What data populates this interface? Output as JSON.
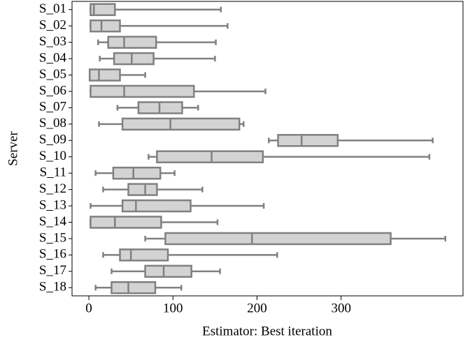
{
  "chart_data": {
    "type": "box",
    "xlabel": "Estimator: Best iteration",
    "ylabel": "Server",
    "categories": [
      "S_01",
      "S_02",
      "S_03",
      "S_04",
      "S_05",
      "S_06",
      "S_07",
      "S_08",
      "S_09",
      "S_10",
      "S_11",
      "S_12",
      "S_13",
      "S_14",
      "S_15",
      "S_16",
      "S_17",
      "S_18"
    ],
    "boxes": [
      {
        "whislo": 2,
        "q1": 2,
        "med": 6,
        "q3": 31,
        "whishi": 157
      },
      {
        "whislo": 2,
        "q1": 2,
        "med": 15,
        "q3": 37,
        "whishi": 165
      },
      {
        "whislo": 11,
        "q1": 23,
        "med": 42,
        "q3": 80,
        "whishi": 151
      },
      {
        "whislo": 13,
        "q1": 30,
        "med": 51,
        "q3": 77,
        "whishi": 150
      },
      {
        "whislo": 1,
        "q1": 1,
        "med": 12,
        "q3": 37,
        "whishi": 67
      },
      {
        "whislo": 2,
        "q1": 2,
        "med": 42,
        "q3": 125,
        "whishi": 210
      },
      {
        "whislo": 34,
        "q1": 59,
        "med": 84,
        "q3": 111,
        "whishi": 130
      },
      {
        "whislo": 12,
        "q1": 40,
        "med": 97,
        "q3": 179,
        "whishi": 184
      },
      {
        "whislo": 214,
        "q1": 225,
        "med": 253,
        "q3": 296,
        "whishi": 409
      },
      {
        "whislo": 71,
        "q1": 81,
        "med": 146,
        "q3": 207,
        "whishi": 405
      },
      {
        "whislo": 8,
        "q1": 29,
        "med": 53,
        "q3": 85,
        "whishi": 102
      },
      {
        "whislo": 17,
        "q1": 47,
        "med": 67,
        "q3": 81,
        "whishi": 135
      },
      {
        "whislo": 2,
        "q1": 40,
        "med": 56,
        "q3": 121,
        "whishi": 208
      },
      {
        "whislo": 2,
        "q1": 2,
        "med": 31,
        "q3": 86,
        "whishi": 153
      },
      {
        "whislo": 67,
        "q1": 91,
        "med": 194,
        "q3": 359,
        "whishi": 424
      },
      {
        "whislo": 17,
        "q1": 37,
        "med": 50,
        "q3": 94,
        "whishi": 224
      },
      {
        "whislo": 27,
        "q1": 67,
        "med": 89,
        "q3": 122,
        "whishi": 156
      },
      {
        "whislo": 8,
        "q1": 27,
        "med": 47,
        "q3": 79,
        "whishi": 110
      }
    ],
    "color": "#d3d3d3",
    "edgecolor": "#808080",
    "xlim": [
      -20,
      445
    ],
    "xticks": [
      0,
      100,
      200,
      300
    ]
  }
}
